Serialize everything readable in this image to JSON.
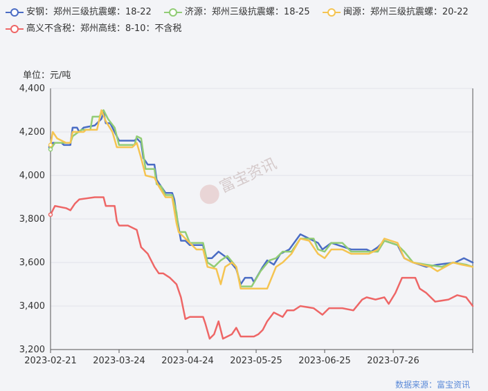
{
  "chart_data": {
    "type": "line",
    "unit_label": "单位：元/吨",
    "x_ticks": [
      "2023-02-21",
      "2023-03-24",
      "2023-04-24",
      "2023-05-25",
      "2023-06-25",
      "2023-07-26"
    ],
    "x_range": [
      "2023-02-21",
      "2023-08-31"
    ],
    "ylim": [
      3200,
      4400
    ],
    "y_ticks": [
      "3,200",
      "3,400",
      "3,600",
      "3,800",
      "4,000",
      "4,200",
      "4,400"
    ],
    "grid": true,
    "legend_position": "top-left",
    "source": "数据来源：富宝资讯",
    "watermark": "富宝资讯",
    "series": [
      {
        "name": "安钢：郑州三级抗震螺：18-22",
        "color": "#4a6cc4",
        "points": [
          [
            "2023-02-21",
            4130
          ],
          [
            "2023-02-22",
            4150
          ],
          [
            "2023-02-26",
            4150
          ],
          [
            "2023-02-27",
            4140
          ],
          [
            "2023-03-02",
            4140
          ],
          [
            "2023-03-03",
            4220
          ],
          [
            "2023-03-05",
            4220
          ],
          [
            "2023-03-06",
            4200
          ],
          [
            "2023-03-08",
            4220
          ],
          [
            "2023-03-13",
            4230
          ],
          [
            "2023-03-16",
            4260
          ],
          [
            "2023-03-17",
            4290
          ],
          [
            "2023-03-18",
            4240
          ],
          [
            "2023-03-20",
            4240
          ],
          [
            "2023-03-23",
            4180
          ],
          [
            "2023-03-24",
            4160
          ],
          [
            "2023-03-31",
            4160
          ],
          [
            "2023-04-01",
            4170
          ],
          [
            "2023-04-03",
            4150
          ],
          [
            "2023-04-04",
            4080
          ],
          [
            "2023-04-06",
            4050
          ],
          [
            "2023-04-09",
            4050
          ],
          [
            "2023-04-10",
            3980
          ],
          [
            "2023-04-12",
            3950
          ],
          [
            "2023-04-14",
            3920
          ],
          [
            "2023-04-17",
            3920
          ],
          [
            "2023-04-18",
            3890
          ],
          [
            "2023-04-19",
            3820
          ],
          [
            "2023-04-20",
            3760
          ],
          [
            "2023-04-21",
            3700
          ],
          [
            "2023-04-23",
            3700
          ],
          [
            "2023-04-25",
            3680
          ],
          [
            "2023-05-01",
            3680
          ],
          [
            "2023-05-02",
            3620
          ],
          [
            "2023-05-05",
            3620
          ],
          [
            "2023-05-08",
            3650
          ],
          [
            "2023-05-12",
            3620
          ],
          [
            "2023-05-16",
            3570
          ],
          [
            "2023-05-18",
            3500
          ],
          [
            "2023-05-20",
            3530
          ],
          [
            "2023-05-23",
            3530
          ],
          [
            "2023-05-24",
            3510
          ],
          [
            "2023-05-28",
            3580
          ],
          [
            "2023-05-30",
            3610
          ],
          [
            "2023-06-02",
            3590
          ],
          [
            "2023-06-05",
            3640
          ],
          [
            "2023-06-09",
            3660
          ],
          [
            "2023-06-14",
            3730
          ],
          [
            "2023-06-22",
            3690
          ],
          [
            "2023-06-24",
            3660
          ],
          [
            "2023-06-28",
            3690
          ],
          [
            "2023-07-07",
            3660
          ],
          [
            "2023-07-14",
            3660
          ],
          [
            "2023-07-16",
            3650
          ],
          [
            "2023-07-19",
            3670
          ],
          [
            "2023-07-22",
            3700
          ],
          [
            "2023-07-28",
            3680
          ],
          [
            "2023-07-31",
            3620
          ],
          [
            "2023-08-04",
            3600
          ],
          [
            "2023-08-10",
            3580
          ],
          [
            "2023-08-15",
            3590
          ],
          [
            "2023-08-23",
            3600
          ],
          [
            "2023-08-27",
            3620
          ],
          [
            "2023-08-31",
            3600
          ]
        ]
      },
      {
        "name": "济源：郑州三级抗震螺：18-25",
        "color": "#91cc75",
        "points": [
          [
            "2023-02-21",
            4120
          ],
          [
            "2023-02-23",
            4150
          ],
          [
            "2023-03-02",
            4150
          ],
          [
            "2023-03-03",
            4180
          ],
          [
            "2023-03-07",
            4210
          ],
          [
            "2023-03-11",
            4210
          ],
          [
            "2023-03-12",
            4270
          ],
          [
            "2023-03-15",
            4270
          ],
          [
            "2023-03-17",
            4300
          ],
          [
            "2023-03-19",
            4260
          ],
          [
            "2023-03-22",
            4220
          ],
          [
            "2023-03-24",
            4140
          ],
          [
            "2023-03-31",
            4140
          ],
          [
            "2023-04-01",
            4180
          ],
          [
            "2023-04-03",
            4170
          ],
          [
            "2023-04-05",
            4030
          ],
          [
            "2023-04-09",
            4030
          ],
          [
            "2023-04-10",
            3960
          ],
          [
            "2023-04-12",
            3950
          ],
          [
            "2023-04-14",
            3910
          ],
          [
            "2023-04-17",
            3910
          ],
          [
            "2023-04-19",
            3830
          ],
          [
            "2023-04-20",
            3740
          ],
          [
            "2023-04-23",
            3740
          ],
          [
            "2023-04-25",
            3690
          ],
          [
            "2023-05-01",
            3690
          ],
          [
            "2023-05-03",
            3600
          ],
          [
            "2023-05-06",
            3580
          ],
          [
            "2023-05-09",
            3610
          ],
          [
            "2023-05-12",
            3630
          ],
          [
            "2023-05-16",
            3580
          ],
          [
            "2023-05-18",
            3490
          ],
          [
            "2023-05-23",
            3490
          ],
          [
            "2023-05-27",
            3560
          ],
          [
            "2023-05-31",
            3610
          ],
          [
            "2023-06-03",
            3620
          ],
          [
            "2023-06-06",
            3650
          ],
          [
            "2023-06-10",
            3650
          ],
          [
            "2023-06-14",
            3710
          ],
          [
            "2023-06-20",
            3710
          ],
          [
            "2023-06-22",
            3660
          ],
          [
            "2023-06-25",
            3650
          ],
          [
            "2023-06-28",
            3690
          ],
          [
            "2023-07-03",
            3690
          ],
          [
            "2023-07-07",
            3650
          ],
          [
            "2023-07-19",
            3650
          ],
          [
            "2023-07-22",
            3700
          ],
          [
            "2023-07-28",
            3680
          ],
          [
            "2023-07-31",
            3650
          ],
          [
            "2023-08-04",
            3600
          ],
          [
            "2023-08-10",
            3590
          ],
          [
            "2023-08-17",
            3580
          ],
          [
            "2023-08-22",
            3600
          ],
          [
            "2023-08-28",
            3590
          ],
          [
            "2023-08-31",
            3580
          ]
        ]
      },
      {
        "name": "闽源：郑州三级抗震螺：20-22",
        "color": "#f5c451",
        "points": [
          [
            "2023-02-21",
            4140
          ],
          [
            "2023-02-22",
            4200
          ],
          [
            "2023-02-24",
            4170
          ],
          [
            "2023-02-28",
            4150
          ],
          [
            "2023-03-02",
            4150
          ],
          [
            "2023-03-03",
            4200
          ],
          [
            "2023-03-08",
            4200
          ],
          [
            "2023-03-09",
            4210
          ],
          [
            "2023-03-11",
            4210
          ],
          [
            "2023-03-14",
            4210
          ],
          [
            "2023-03-16",
            4300
          ],
          [
            "2023-03-18",
            4250
          ],
          [
            "2023-03-21",
            4200
          ],
          [
            "2023-03-23",
            4130
          ],
          [
            "2023-03-30",
            4130
          ],
          [
            "2023-04-01",
            4150
          ],
          [
            "2023-04-03",
            4080
          ],
          [
            "2023-04-05",
            4000
          ],
          [
            "2023-04-09",
            3990
          ],
          [
            "2023-04-11",
            3950
          ],
          [
            "2023-04-14",
            3900
          ],
          [
            "2023-04-17",
            3900
          ],
          [
            "2023-04-19",
            3780
          ],
          [
            "2023-04-20",
            3740
          ],
          [
            "2023-04-24",
            3700
          ],
          [
            "2023-04-28",
            3660
          ],
          [
            "2023-05-01",
            3660
          ],
          [
            "2023-05-03",
            3580
          ],
          [
            "2023-05-07",
            3570
          ],
          [
            "2023-05-09",
            3500
          ],
          [
            "2023-05-11",
            3580
          ],
          [
            "2023-05-14",
            3600
          ],
          [
            "2023-05-16",
            3580
          ],
          [
            "2023-05-18",
            3480
          ],
          [
            "2023-05-30",
            3480
          ],
          [
            "2023-06-03",
            3580
          ],
          [
            "2023-06-06",
            3600
          ],
          [
            "2023-06-10",
            3640
          ],
          [
            "2023-06-14",
            3710
          ],
          [
            "2023-06-18",
            3700
          ],
          [
            "2023-06-22",
            3640
          ],
          [
            "2023-06-25",
            3620
          ],
          [
            "2023-06-28",
            3660
          ],
          [
            "2023-07-03",
            3660
          ],
          [
            "2023-07-07",
            3640
          ],
          [
            "2023-07-15",
            3640
          ],
          [
            "2023-07-19",
            3660
          ],
          [
            "2023-07-22",
            3710
          ],
          [
            "2023-07-28",
            3690
          ],
          [
            "2023-07-31",
            3620
          ],
          [
            "2023-08-04",
            3600
          ],
          [
            "2023-08-12",
            3580
          ],
          [
            "2023-08-15",
            3560
          ],
          [
            "2023-08-22",
            3600
          ],
          [
            "2023-08-26",
            3590
          ],
          [
            "2023-08-31",
            3580
          ]
        ]
      },
      {
        "name": "高义不含税：郑州高线：8-10：不含税",
        "color": "#ee6666",
        "points": [
          [
            "2023-02-21",
            3820
          ],
          [
            "2023-02-23",
            3860
          ],
          [
            "2023-02-28",
            3850
          ],
          [
            "2023-03-02",
            3840
          ],
          [
            "2023-03-04",
            3870
          ],
          [
            "2023-03-06",
            3890
          ],
          [
            "2023-03-13",
            3900
          ],
          [
            "2023-03-17",
            3900
          ],
          [
            "2023-03-18",
            3860
          ],
          [
            "2023-03-22",
            3860
          ],
          [
            "2023-03-23",
            3790
          ],
          [
            "2023-03-24",
            3770
          ],
          [
            "2023-03-28",
            3770
          ],
          [
            "2023-04-01",
            3750
          ],
          [
            "2023-04-03",
            3670
          ],
          [
            "2023-04-06",
            3640
          ],
          [
            "2023-04-09",
            3580
          ],
          [
            "2023-04-11",
            3550
          ],
          [
            "2023-04-13",
            3550
          ],
          [
            "2023-04-16",
            3530
          ],
          [
            "2023-04-19",
            3500
          ],
          [
            "2023-04-21",
            3440
          ],
          [
            "2023-04-23",
            3340
          ],
          [
            "2023-04-25",
            3350
          ],
          [
            "2023-05-01",
            3350
          ],
          [
            "2023-05-02",
            3320
          ],
          [
            "2023-05-04",
            3250
          ],
          [
            "2023-05-06",
            3270
          ],
          [
            "2023-05-08",
            3330
          ],
          [
            "2023-05-10",
            3250
          ],
          [
            "2023-05-14",
            3270
          ],
          [
            "2023-05-16",
            3300
          ],
          [
            "2023-05-18",
            3260
          ],
          [
            "2023-05-24",
            3260
          ],
          [
            "2023-05-26",
            3270
          ],
          [
            "2023-05-28",
            3290
          ],
          [
            "2023-05-30",
            3330
          ],
          [
            "2023-06-02",
            3370
          ],
          [
            "2023-06-06",
            3350
          ],
          [
            "2023-06-08",
            3380
          ],
          [
            "2023-06-11",
            3380
          ],
          [
            "2023-06-14",
            3400
          ],
          [
            "2023-06-20",
            3390
          ],
          [
            "2023-06-24",
            3360
          ],
          [
            "2023-06-27",
            3390
          ],
          [
            "2023-07-03",
            3390
          ],
          [
            "2023-07-08",
            3380
          ],
          [
            "2023-07-12",
            3430
          ],
          [
            "2023-07-14",
            3440
          ],
          [
            "2023-07-18",
            3430
          ],
          [
            "2023-07-22",
            3440
          ],
          [
            "2023-07-24",
            3410
          ],
          [
            "2023-07-27",
            3460
          ],
          [
            "2023-07-30",
            3530
          ],
          [
            "2023-08-05",
            3530
          ],
          [
            "2023-08-07",
            3480
          ],
          [
            "2023-08-10",
            3460
          ],
          [
            "2023-08-14",
            3420
          ],
          [
            "2023-08-20",
            3430
          ],
          [
            "2023-08-24",
            3450
          ],
          [
            "2023-08-28",
            3440
          ],
          [
            "2023-08-31",
            3400
          ]
        ]
      }
    ]
  }
}
